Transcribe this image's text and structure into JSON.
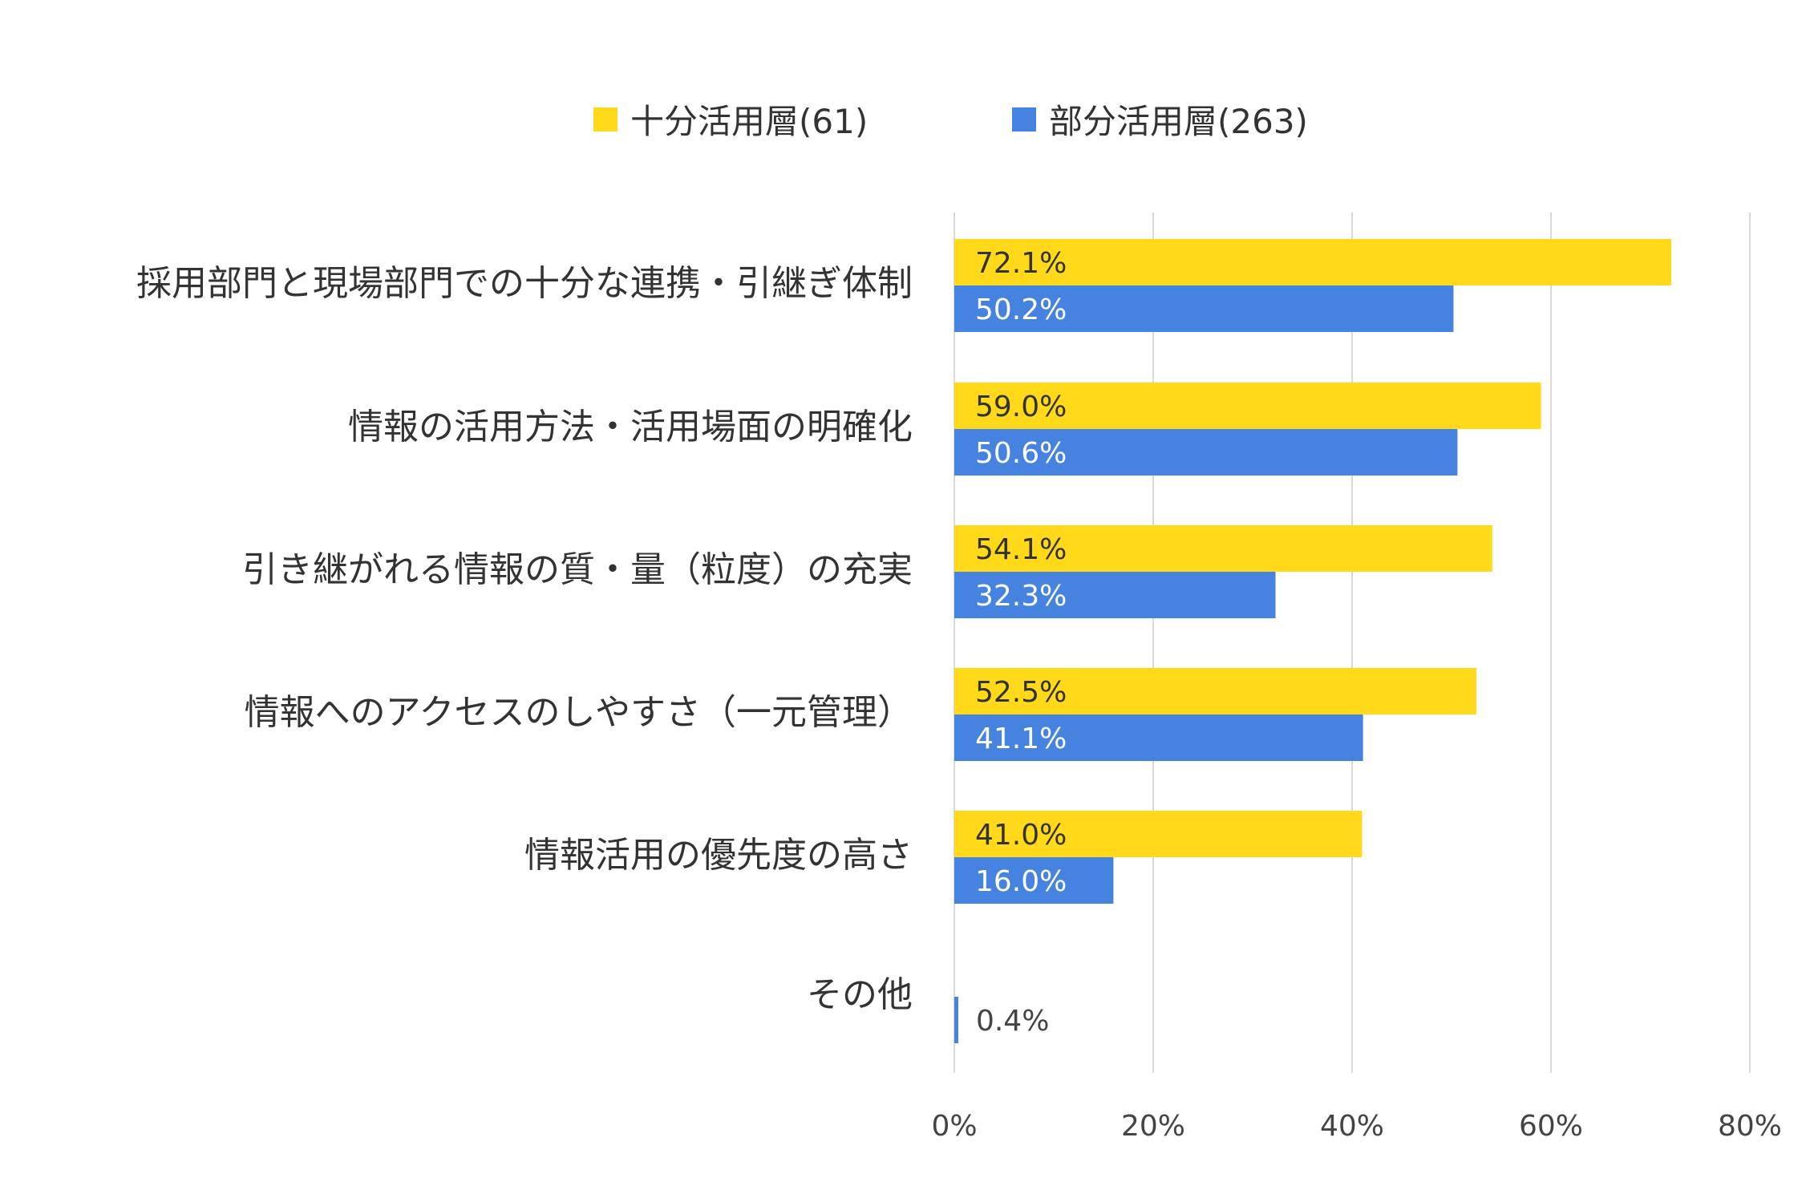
{
  "chart_data": {
    "type": "bar",
    "orientation": "horizontal",
    "categories": [
      "採用部門と現場部門での十分な連携・引継ぎ体制",
      "情報の活用方法・活用場面の明確化",
      "引き継がれる情報の質・量（粒度）の充実",
      "情報へのアクセスのしやすさ（一元管理）",
      "情報活用の優先度の高さ",
      "その他"
    ],
    "series": [
      {
        "name": "十分活用層(61)",
        "color": "#FFD91A",
        "values": [
          72.1,
          59.0,
          54.1,
          52.5,
          41.0,
          null
        ],
        "labels": [
          "72.1%",
          "59.0%",
          "54.1%",
          "52.5%",
          "41.0%",
          ""
        ]
      },
      {
        "name": "部分活用層(263)",
        "color": "#4682E0",
        "values": [
          50.2,
          50.6,
          32.3,
          41.1,
          16.0,
          0.4
        ],
        "labels": [
          "50.2%",
          "50.6%",
          "32.3%",
          "41.1%",
          "16.0%",
          "0.4%"
        ]
      }
    ],
    "xlim": [
      0,
      80
    ],
    "xticks": [
      0,
      20,
      40,
      60,
      80
    ],
    "xtick_labels": [
      "0%",
      "20%",
      "40%",
      "60%",
      "80%"
    ],
    "grid": true,
    "legend_position": "top"
  }
}
